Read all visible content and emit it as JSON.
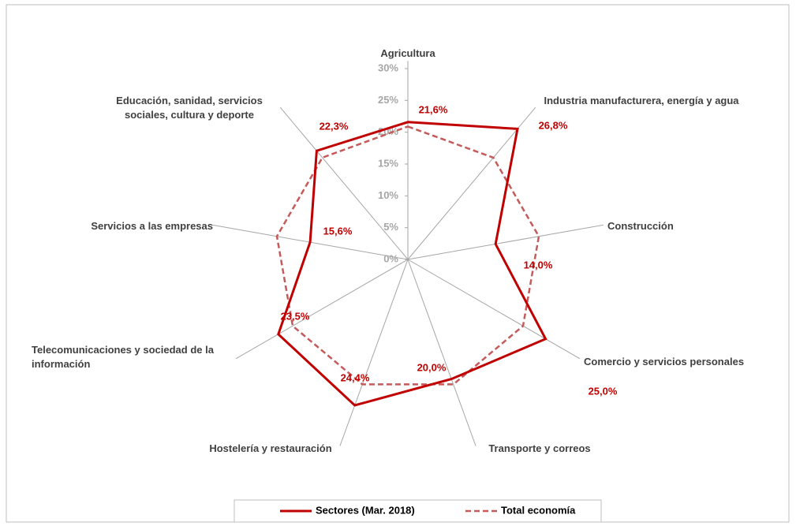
{
  "chart_data": {
    "type": "radar",
    "categories": [
      "Agricultura",
      "Industria manufacturera, energía y agua",
      "Construcción",
      "Comercio y servicios personales",
      "Transporte y correos",
      "Hostelería y restauración",
      "Telecomunicaciones y sociedad de la información",
      "Servicios a las empresas",
      "Educación, sanidad, servicios sociales, cultura y deporte"
    ],
    "series": [
      {
        "name": "Sectores (Mar. 2018)",
        "color": "#c00000",
        "style": "solid",
        "values": [
          21.6,
          26.8,
          14.0,
          25.0,
          20.0,
          24.4,
          23.5,
          15.6,
          22.3
        ],
        "value_labels": [
          "21,6%",
          "26,8%",
          "14,0%",
          "25,0%",
          "20,0%",
          "24,4%",
          "23,5%",
          "15,6%",
          "22,3%"
        ]
      },
      {
        "name": "Total economía",
        "color": "#c55a5a",
        "style": "dashed",
        "values": [
          20.9,
          20.9,
          20.9,
          20.9,
          20.9,
          20.9,
          20.9,
          20.9,
          20.9
        ]
      }
    ],
    "ylim": [
      0,
      30
    ],
    "yticks": [
      {
        "value": 0,
        "label": "0%"
      },
      {
        "value": 5,
        "label": "5%"
      },
      {
        "value": 10,
        "label": "10%"
      },
      {
        "value": 15,
        "label": "15%"
      },
      {
        "value": 20,
        "label": "20%"
      },
      {
        "value": 25,
        "label": "25%"
      },
      {
        "value": 30,
        "label": "30%"
      }
    ],
    "legend": "bottom"
  }
}
